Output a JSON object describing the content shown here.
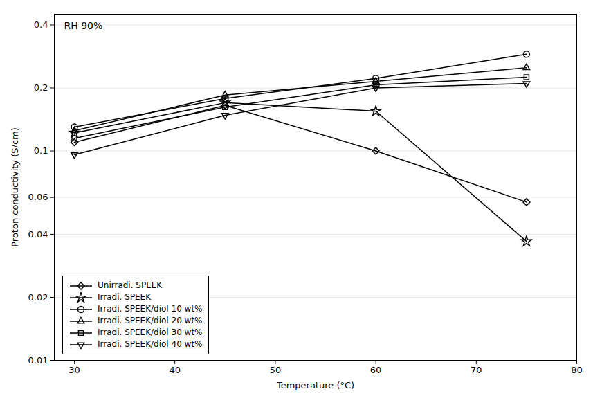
{
  "chart_data": {
    "type": "line",
    "xlabel": "Temperature (°C)",
    "ylabel": "Proton conductivity (S/cm)",
    "annotation": "RH 90%",
    "x": [
      30,
      45,
      60,
      75
    ],
    "series": [
      {
        "name": "Unirradi. SPEEK",
        "color": "black",
        "marker": "diamond",
        "values": [
          0.11,
          0.165,
          0.1,
          0.057
        ]
      },
      {
        "name": "Irradi. SPEEK",
        "color": "black",
        "marker": "star",
        "values": [
          0.122,
          0.17,
          0.155,
          0.037
        ]
      },
      {
        "name": "Irradi. SPEEK/diol 10 wt%",
        "color": "black",
        "marker": "circle",
        "values": [
          0.13,
          0.178,
          0.222,
          0.29
        ]
      },
      {
        "name": "Irradi. SPEEK/diol 20 wt%",
        "color": "black",
        "marker": "triangle-up",
        "values": [
          0.125,
          0.185,
          0.215,
          0.25
        ]
      },
      {
        "name": "Irradi. SPEEK/diol 30 wt%",
        "color": "black",
        "marker": "square",
        "values": [
          0.115,
          0.162,
          0.207,
          0.225
        ]
      },
      {
        "name": "Irradi. SPEEK/diol 40 wt%",
        "color": "black",
        "marker": "triangle-down",
        "values": [
          0.096,
          0.148,
          0.2,
          0.21
        ]
      }
    ],
    "xlim": [
      28,
      80
    ],
    "ylim": [
      0.01,
      0.45
    ],
    "xticks": [
      30,
      40,
      50,
      60,
      70,
      80
    ],
    "yticks": [
      0.01,
      0.02,
      0.04,
      0.06,
      0.1,
      0.2,
      0.4
    ],
    "log": "y",
    "grid": "y",
    "legend": "lower left"
  }
}
